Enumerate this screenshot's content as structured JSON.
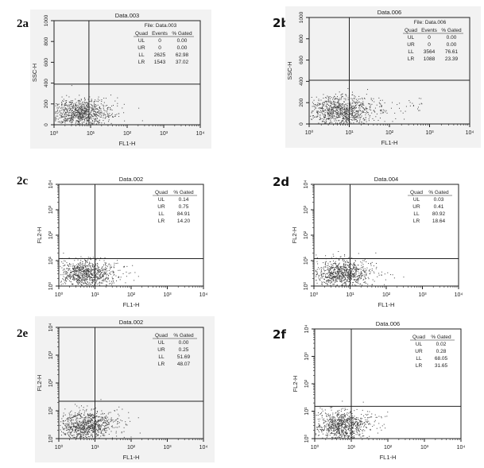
{
  "chart_data": [
    {
      "id": "2a",
      "type": "scatter",
      "title": "Data.003",
      "subtitle": "File: Data.003",
      "xlabel": "FL1-H",
      "ylabel": "SSC-H",
      "xscale": "log",
      "xlim": [
        1,
        10000
      ],
      "ylim": [
        0,
        1000
      ],
      "yscale": "linear",
      "xticks": [
        "10⁰",
        "10¹",
        "10²",
        "10³",
        "10⁴"
      ],
      "yticks": [
        "0",
        "200",
        "400",
        "600",
        "800",
        "1000"
      ],
      "gate": {
        "x": 9,
        "y": 390
      },
      "table": {
        "headers": [
          "Quad",
          "Events",
          "% Gated"
        ],
        "rows": [
          [
            "UL",
            "0",
            "0.00"
          ],
          [
            "UR",
            "0",
            "0.00"
          ],
          [
            "LL",
            "2625",
            "62.98"
          ],
          [
            "LR",
            "1543",
            "37.02"
          ]
        ]
      }
    },
    {
      "id": "2b",
      "type": "scatter",
      "title": "Data.006",
      "subtitle": "File: Data.006",
      "xlabel": "FL1-H",
      "ylabel": "SSC-H",
      "xscale": "log",
      "xlim": [
        1,
        10000
      ],
      "ylim": [
        0,
        1000
      ],
      "yscale": "linear",
      "xticks": [
        "10⁰",
        "10¹",
        "10²",
        "10³",
        "10⁴"
      ],
      "yticks": [
        "0",
        "200",
        "400",
        "600",
        "800",
        "1000"
      ],
      "gate": {
        "x": 10,
        "y": 410
      },
      "table": {
        "headers": [
          "Quad",
          "Events",
          "% Gated"
        ],
        "rows": [
          [
            "UL",
            "0",
            "0.00"
          ],
          [
            "UR",
            "0",
            "0.00"
          ],
          [
            "LL",
            "3564",
            "76.61"
          ],
          [
            "LR",
            "1088",
            "23.39"
          ]
        ]
      }
    },
    {
      "id": "2c",
      "type": "scatter",
      "title": "Data.002",
      "xlabel": "FL1-H",
      "ylabel": "FL2-H",
      "xscale": "log",
      "yscale": "log",
      "xlim": [
        1,
        10000
      ],
      "ylim": [
        1,
        10000
      ],
      "xticks": [
        "10⁰",
        "10¹",
        "10²",
        "10³",
        "10⁴"
      ],
      "yticks": [
        "10⁰",
        "10¹",
        "10²",
        "10³",
        "10⁴"
      ],
      "gate": {
        "x": 10,
        "y": 12
      },
      "table": {
        "headers": [
          "Quad",
          "% Gated"
        ],
        "rows": [
          [
            "UL",
            "0.14"
          ],
          [
            "UR",
            "0.75"
          ],
          [
            "LL",
            "84.91"
          ],
          [
            "LR",
            "14.20"
          ]
        ]
      }
    },
    {
      "id": "2d",
      "type": "scatter",
      "title": "Data.004",
      "xlabel": "FL1-H",
      "ylabel": "FL2-H",
      "xscale": "log",
      "yscale": "log",
      "xlim": [
        1,
        10000
      ],
      "ylim": [
        1,
        10000
      ],
      "xticks": [
        "10⁰",
        "10¹",
        "10²",
        "10³",
        "10⁴"
      ],
      "yticks": [
        "10⁰",
        "10¹",
        "10²",
        "10³",
        "10⁴"
      ],
      "gate": {
        "x": 10,
        "y": 12
      },
      "table": {
        "headers": [
          "Quad",
          "% Gated"
        ],
        "rows": [
          [
            "UL",
            "0.03"
          ],
          [
            "UR",
            "0.41"
          ],
          [
            "LL",
            "80.92"
          ],
          [
            "LR",
            "18.64"
          ]
        ]
      }
    },
    {
      "id": "2e",
      "type": "scatter",
      "title": "Data.002",
      "xlabel": "FL1-H",
      "ylabel": "FL2-H",
      "xscale": "log",
      "yscale": "log",
      "xlim": [
        1,
        10000
      ],
      "ylim": [
        1,
        10000
      ],
      "xticks": [
        "10⁰",
        "10¹",
        "10²",
        "10³",
        "10⁴"
      ],
      "yticks": [
        "10⁰",
        "10¹",
        "10²",
        "10³",
        "10⁴"
      ],
      "gate": {
        "x": 10,
        "y": 22
      },
      "table": {
        "headers": [
          "Quad",
          "% Gated"
        ],
        "rows": [
          [
            "UL",
            "0.00"
          ],
          [
            "UR",
            "0.25"
          ],
          [
            "LL",
            "51.69"
          ],
          [
            "LR",
            "48.07"
          ]
        ]
      }
    },
    {
      "id": "2f",
      "type": "scatter",
      "title": "Data.006",
      "xlabel": "FL1-H",
      "ylabel": "FL2-H",
      "xscale": "log",
      "yscale": "log",
      "xlim": [
        1,
        10000
      ],
      "ylim": [
        1,
        10000
      ],
      "xticks": [
        "10⁰",
        "10¹",
        "10²",
        "10³",
        "10⁴"
      ],
      "yticks": [
        "10⁰",
        "10¹",
        "10²",
        "10³",
        "10⁴"
      ],
      "gate": {
        "x": 10,
        "y": 15
      },
      "table": {
        "headers": [
          "Quad",
          "% Gated"
        ],
        "rows": [
          [
            "UL",
            "0.02"
          ],
          [
            "UR",
            "0.28"
          ],
          [
            "LL",
            "68.05"
          ],
          [
            "LR",
            "31.65"
          ]
        ]
      }
    }
  ],
  "colors": {
    "dots": "#444444",
    "axes": "#222222",
    "background": "#f2f2f2"
  }
}
